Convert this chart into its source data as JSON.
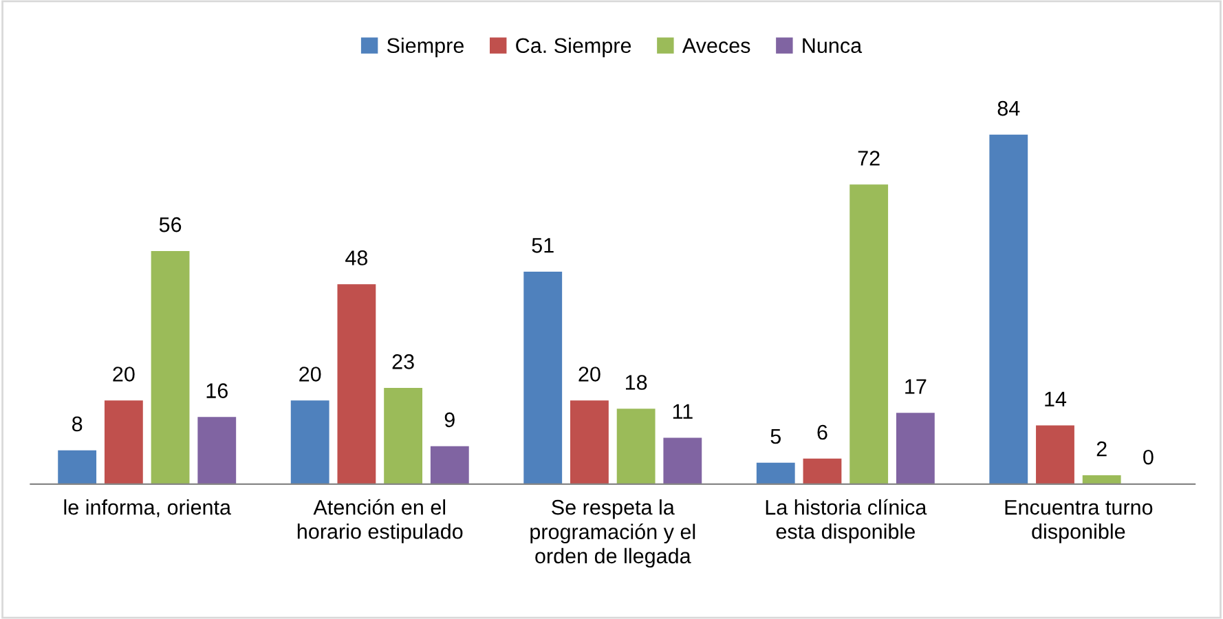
{
  "chart_data": {
    "type": "bar",
    "categories": [
      "le informa, orienta",
      "Atención en el\nhorario estipulado",
      "Se respeta la\nprogramación y el\norden de llegada",
      "La historia clínica\nesta disponible",
      "Encuentra turno\ndisponible"
    ],
    "series": [
      {
        "name": "Siempre",
        "color": "#4f81bd",
        "values": [
          8,
          20,
          51,
          5,
          84
        ]
      },
      {
        "name": "Ca. Siempre",
        "color": "#c0504d",
        "values": [
          20,
          48,
          20,
          6,
          14
        ]
      },
      {
        "name": "Aveces",
        "color": "#9bbb59",
        "values": [
          56,
          23,
          18,
          72,
          2
        ]
      },
      {
        "name": "Nunca",
        "color": "#8064a2",
        "values": [
          16,
          9,
          11,
          17,
          0
        ]
      }
    ],
    "data_labels": true,
    "legend": "top"
  }
}
